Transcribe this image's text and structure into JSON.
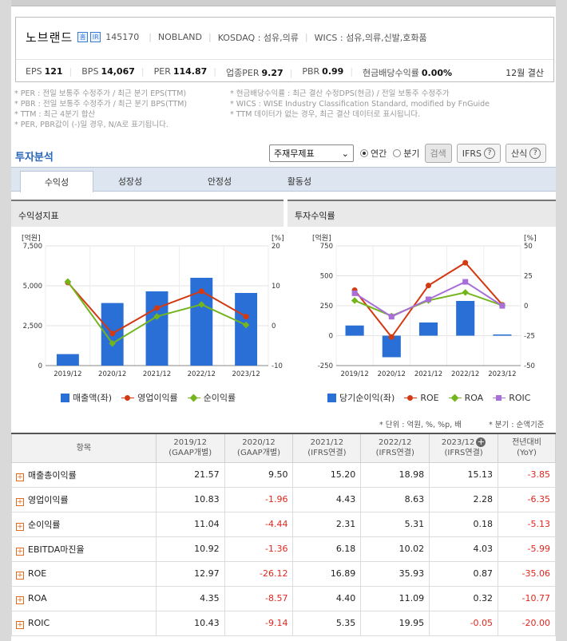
{
  "corp": {
    "name": "노브랜드",
    "icon1": "홈",
    "icon2": "IR",
    "code": "145170",
    "eng_name": "NOBLAND",
    "market": "KOSDAQ : 섬유,의류",
    "wics": "WICS : 섬유,의류,신발,호화품",
    "metrics": [
      {
        "label": "EPS",
        "value": "121"
      },
      {
        "label": "BPS",
        "value": "14,067"
      },
      {
        "label": "PER",
        "value": "114.87"
      },
      {
        "label": "업종PER",
        "value": "9.27"
      },
      {
        "label": "PBR",
        "value": "0.99"
      },
      {
        "label": "현금배당수익률",
        "value": "0.00%"
      }
    ],
    "settlement": "12월 결산"
  },
  "notes": {
    "left": [
      "* PER : 전일 보통주 수정주가 / 최근 분기 EPS(TTM)",
      "* PBR : 전일 보통주 수정주가 / 최근 분기 BPS(TTM)",
      "* TTM : 최근 4분기 합산",
      "* PER, PBR값이 (-)일 경우, N/A로 표기됩니다."
    ],
    "right": [
      "* 현금배당수익률 : 최근 결산 수정DPS(현금) / 전일 보통주 수정주가",
      "* WICS : WISE Industry Classification Standard, modified by FnGuide",
      "* TTM 데이터가 없는 경우, 최근 결산 데이터로 표시됩니다."
    ]
  },
  "section": {
    "title": "투자분석",
    "select_value": "주재무제표",
    "radio_annual": "연간",
    "radio_quarter": "분기",
    "search_btn": "검색",
    "ifrs_btn": "IFRS",
    "formula_btn": "산식",
    "help_glyph": "?"
  },
  "tabs": [
    "수익성",
    "성장성",
    "안정성",
    "활동성"
  ],
  "charts": {
    "left_title": "수익성지표",
    "right_title": "투자수익률"
  },
  "chart_data": [
    {
      "type": "bar",
      "categories": [
        "2019/12",
        "2020/12",
        "2021/12",
        "2022/12",
        "2023/12"
      ],
      "left_axis_label": "[억원]",
      "right_axis_label": "[%]",
      "ylim": [
        0,
        7500
      ],
      "y_ticks": [
        "7,500",
        "5,000",
        "2,500",
        "0"
      ],
      "y2lim": [
        -10,
        20
      ],
      "y2_ticks": [
        "20",
        "10",
        "0",
        "-10"
      ],
      "bars": {
        "name": "매출액(좌)",
        "color": "#2a6fd6",
        "values": [
          720,
          3920,
          4650,
          5500,
          4550
        ]
      },
      "lines": [
        {
          "name": "영업이익률",
          "color": "#d33a12",
          "marker": "circle",
          "values": [
            10.83,
            -1.96,
            4.43,
            8.63,
            2.28
          ]
        },
        {
          "name": "순이익률",
          "color": "#74b51e",
          "marker": "diamond",
          "values": [
            11.04,
            -4.44,
            2.31,
            5.31,
            0.18
          ]
        }
      ],
      "grid": true,
      "legend": "bottom"
    },
    {
      "type": "bar",
      "categories": [
        "2019/12",
        "2020/12",
        "2021/12",
        "2022/12",
        "2023/12"
      ],
      "left_axis_label": "[억원]",
      "right_axis_label": "[%]",
      "ylim": [
        -250,
        750
      ],
      "y_ticks": [
        "750",
        "500",
        "250",
        "0",
        "-250"
      ],
      "y2lim": [
        -50,
        50
      ],
      "y2_ticks": [
        "50",
        "25",
        "0",
        "-25",
        "-50"
      ],
      "bars": {
        "name": "당기순이익(좌)",
        "color": "#2a6fd6",
        "values": [
          85,
          -180,
          110,
          290,
          10
        ]
      },
      "lines": [
        {
          "name": "ROE",
          "color": "#d33a12",
          "marker": "circle",
          "values": [
            12.97,
            -26.12,
            16.89,
            35.93,
            0.87
          ]
        },
        {
          "name": "ROA",
          "color": "#74b51e",
          "marker": "diamond",
          "values": [
            4.35,
            -8.57,
            4.4,
            11.09,
            0.32
          ]
        },
        {
          "name": "ROIC",
          "color": "#a86fd9",
          "marker": "square",
          "values": [
            10.43,
            -9.14,
            5.35,
            19.95,
            -0.05
          ]
        }
      ],
      "grid": true,
      "legend": "bottom"
    }
  ],
  "units": {
    "left": "* 단위 : 억원, %, %p, 배",
    "right": "* 분기 : 순액기준"
  },
  "table": {
    "header_item": "항목",
    "columns": [
      {
        "year": "2019/12",
        "basis": "(GAAP개별)"
      },
      {
        "year": "2020/12",
        "basis": "(GAAP개별)"
      },
      {
        "year": "2021/12",
        "basis": "(IFRS연결)"
      },
      {
        "year": "2022/12",
        "basis": "(IFRS연결)"
      },
      {
        "year": "2023/12",
        "basis": "(IFRS연결)"
      },
      {
        "year": "전년대비",
        "basis": "(YoY)"
      }
    ],
    "expand_glyph": "+",
    "rows": [
      {
        "label": "매출총이익률",
        "values": [
          "21.57",
          "9.50",
          "15.20",
          "18.98",
          "15.13",
          "-3.85"
        ]
      },
      {
        "label": "영업이익률",
        "values": [
          "10.83",
          "-1.96",
          "4.43",
          "8.63",
          "2.28",
          "-6.35"
        ]
      },
      {
        "label": "순이익률",
        "values": [
          "11.04",
          "-4.44",
          "2.31",
          "5.31",
          "0.18",
          "-5.13"
        ]
      },
      {
        "label": "EBITDA마진율",
        "values": [
          "10.92",
          "-1.36",
          "6.18",
          "10.02",
          "4.03",
          "-5.99"
        ]
      },
      {
        "label": "ROE",
        "values": [
          "12.97",
          "-26.12",
          "16.89",
          "35.93",
          "0.87",
          "-35.06"
        ]
      },
      {
        "label": "ROA",
        "values": [
          "4.35",
          "-8.57",
          "4.40",
          "11.09",
          "0.32",
          "-10.77"
        ]
      },
      {
        "label": "ROIC",
        "values": [
          "10.43",
          "-9.14",
          "5.35",
          "19.95",
          "-0.05",
          "-20.00"
        ]
      }
    ]
  }
}
